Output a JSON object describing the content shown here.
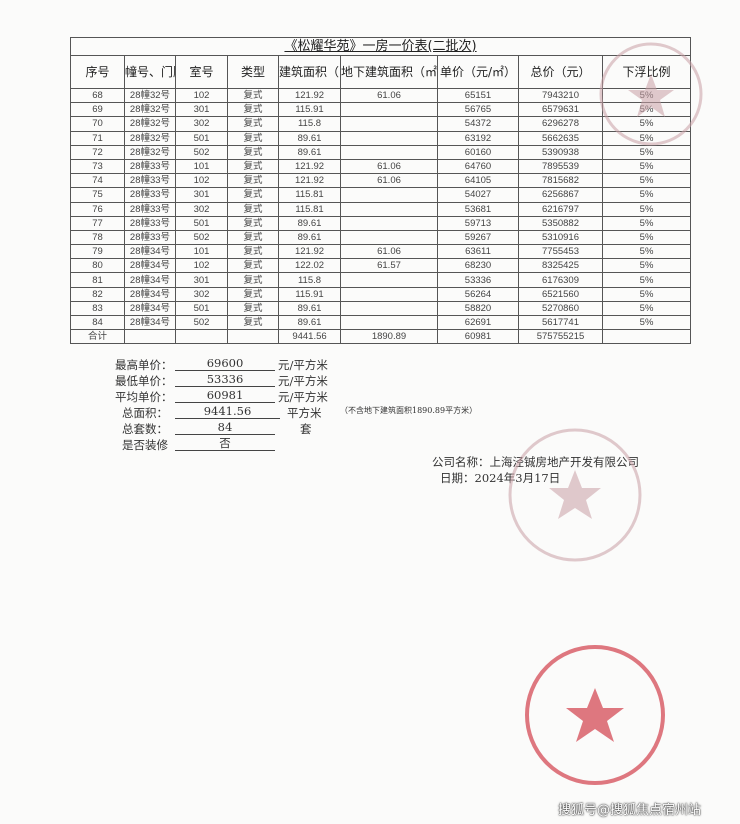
{
  "title": "《松耀华苑》一房一价表(二批次)",
  "headers": [
    "序号",
    "幢号、门牌号",
    "室号",
    "类型",
    "建筑面积（㎡）",
    "地下建筑面积（㎡）",
    "单价（元/㎡）",
    "总价（元）",
    "下浮比例"
  ],
  "rows": [
    [
      "68",
      "28幢32号",
      "102",
      "复式",
      "121.92",
      "61.06",
      "65151",
      "7943210",
      "5%"
    ],
    [
      "69",
      "28幢32号",
      "301",
      "复式",
      "115.91",
      "",
      "56765",
      "6579631",
      "5%"
    ],
    [
      "70",
      "28幢32号",
      "302",
      "复式",
      "115.8",
      "",
      "54372",
      "6296278",
      "5%"
    ],
    [
      "71",
      "28幢32号",
      "501",
      "复式",
      "89.61",
      "",
      "63192",
      "5662635",
      "5%"
    ],
    [
      "72",
      "28幢32号",
      "502",
      "复式",
      "89.61",
      "",
      "60160",
      "5390938",
      "5%"
    ],
    [
      "73",
      "28幢33号",
      "101",
      "复式",
      "121.92",
      "61.06",
      "64760",
      "7895539",
      "5%"
    ],
    [
      "74",
      "28幢33号",
      "102",
      "复式",
      "121.92",
      "61.06",
      "64105",
      "7815682",
      "5%"
    ],
    [
      "75",
      "28幢33号",
      "301",
      "复式",
      "115.81",
      "",
      "54027",
      "6256867",
      "5%"
    ],
    [
      "76",
      "28幢33号",
      "302",
      "复式",
      "115.81",
      "",
      "53681",
      "6216797",
      "5%"
    ],
    [
      "77",
      "28幢33号",
      "501",
      "复式",
      "89.61",
      "",
      "59713",
      "5350882",
      "5%"
    ],
    [
      "78",
      "28幢33号",
      "502",
      "复式",
      "89.61",
      "",
      "59267",
      "5310916",
      "5%"
    ],
    [
      "79",
      "28幢34号",
      "101",
      "复式",
      "121.92",
      "61.06",
      "63611",
      "7755453",
      "5%"
    ],
    [
      "80",
      "28幢34号",
      "102",
      "复式",
      "122.02",
      "61.57",
      "68230",
      "8325425",
      "5%"
    ],
    [
      "81",
      "28幢34号",
      "301",
      "复式",
      "115.8",
      "",
      "53336",
      "6176309",
      "5%"
    ],
    [
      "82",
      "28幢34号",
      "302",
      "复式",
      "115.91",
      "",
      "56264",
      "6521560",
      "5%"
    ],
    [
      "83",
      "28幢34号",
      "501",
      "复式",
      "89.61",
      "",
      "58820",
      "5270860",
      "5%"
    ],
    [
      "84",
      "28幢34号",
      "502",
      "复式",
      "89.61",
      "",
      "62691",
      "5617741",
      "5%"
    ]
  ],
  "total": [
    "合计",
    "",
    "",
    "",
    "9441.56",
    "1890.89",
    "60981",
    "575755215",
    ""
  ],
  "summary": {
    "max_label": "最高单价：",
    "max_value": "69600",
    "max_unit": "元/平方米",
    "min_label": "最低单价：",
    "min_value": "53336",
    "min_unit": "元/平方米",
    "avg_label": "平均单价：",
    "avg_value": "60981",
    "avg_unit": "元/平方米",
    "area_label": "总面积：",
    "area_value": "9441.56",
    "area_unit": "平方米",
    "area_note": "（不含地下建筑面积1890.89平方米）",
    "count_label": "总套数：",
    "count_value": "84",
    "count_unit": "套",
    "deco_label": "是否装修",
    "deco_value": "否"
  },
  "company": "公司名称：上海泾铖房地产开发有限公司",
  "date": "日期：2024年3月17日",
  "stamp_text": "上海泾铖房地产开发有限公司",
  "stamp_color": "#d9606a",
  "watermark": "搜狐号@搜狐焦点宿州站"
}
